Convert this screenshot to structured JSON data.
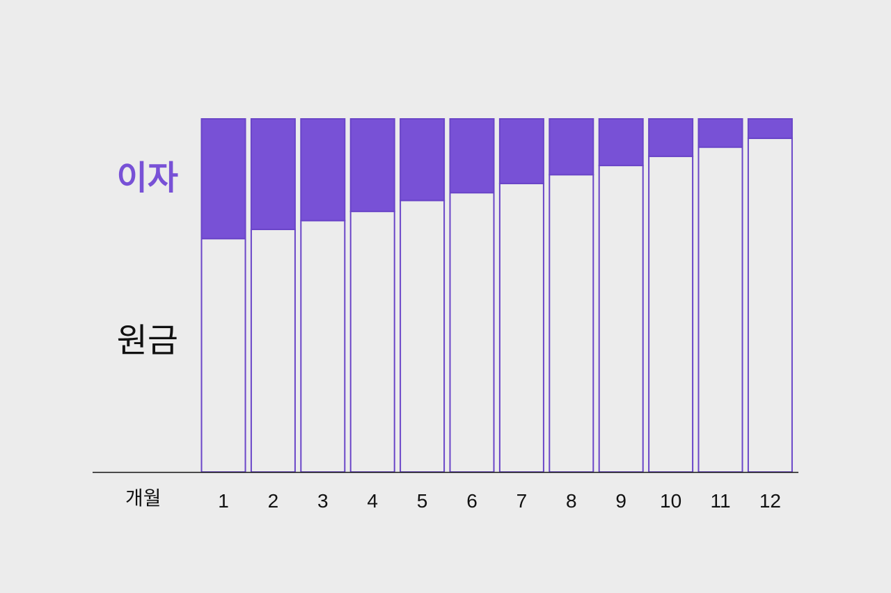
{
  "chart_data": {
    "type": "bar",
    "stacked": true,
    "normalized": true,
    "xlabel": "개월",
    "categories": [
      "1",
      "2",
      "3",
      "4",
      "5",
      "6",
      "7",
      "8",
      "9",
      "10",
      "11",
      "12"
    ],
    "series": [
      {
        "name": "원금",
        "color": "#ececec",
        "values": [
          66.1,
          68.7,
          71.2,
          73.8,
          76.9,
          79.1,
          81.7,
          84.2,
          86.8,
          89.4,
          92.0,
          94.5
        ]
      },
      {
        "name": "이자",
        "color": "#7851d6",
        "values": [
          33.9,
          31.3,
          28.8,
          26.2,
          23.1,
          20.9,
          18.3,
          15.8,
          13.2,
          10.6,
          8.0,
          5.5
        ]
      }
    ],
    "ylim": [
      0,
      100
    ],
    "grid": false,
    "legend": "left",
    "colors": {
      "accent": "#7851d6",
      "outline": "#6a45c8",
      "axis": "#111111",
      "background": "#ececec"
    }
  }
}
